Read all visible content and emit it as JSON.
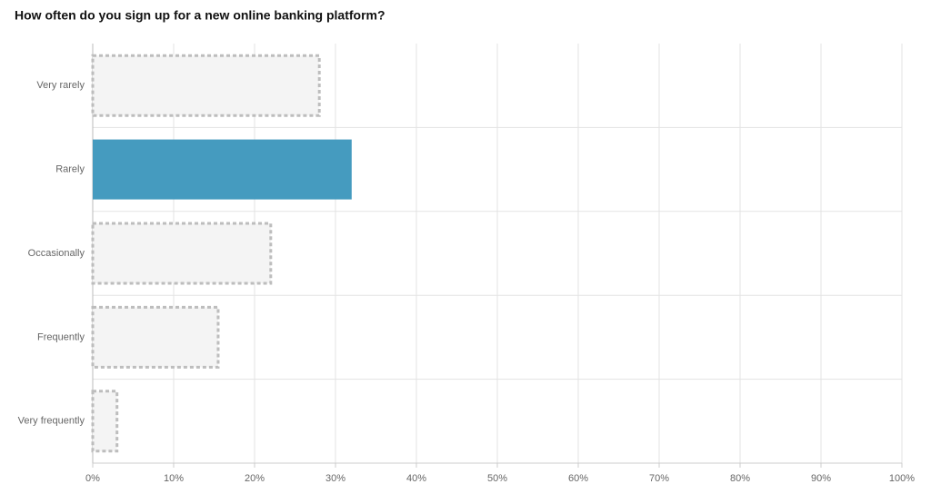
{
  "chart_data": {
    "type": "hbar",
    "title": "How often do you sign up for a new online banking platform?",
    "categories": [
      "Very rarely",
      "Rarely",
      "Occasionally",
      "Frequently",
      "Very frequently"
    ],
    "values": [
      28,
      32,
      22,
      15.5,
      3
    ],
    "color": "#459bbf",
    "muted_color": "#f4f4f4",
    "highlight": "Rarely",
    "xlim": [
      0,
      100
    ],
    "xticks": [
      {
        "value": 0,
        "label": "0%"
      },
      {
        "value": 10,
        "label": "10%"
      },
      {
        "value": 20,
        "label": "20%"
      },
      {
        "value": 30,
        "label": "30%"
      },
      {
        "value": 40,
        "label": "40%"
      },
      {
        "value": 50,
        "label": "50%"
      },
      {
        "value": 60,
        "label": "60%"
      },
      {
        "value": 70,
        "label": "70%"
      },
      {
        "value": 80,
        "label": "80%"
      },
      {
        "value": 90,
        "label": "90%"
      },
      {
        "value": 100,
        "label": "100%"
      }
    ],
    "grid": true
  }
}
